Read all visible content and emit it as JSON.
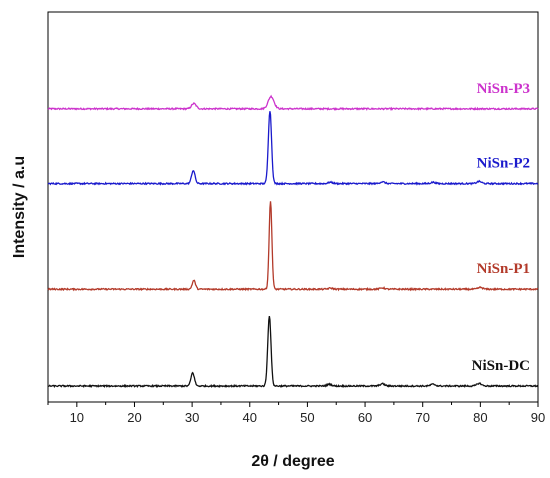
{
  "chart_data": {
    "type": "line",
    "title": "",
    "xlabel": "2θ / degree",
    "ylabel": "Intensity / a.u",
    "xlim": [
      5,
      90
    ],
    "x_ticks": [
      10,
      20,
      30,
      40,
      50,
      60,
      70,
      80,
      90
    ],
    "y_ticks_shown": false,
    "grid": false,
    "legend": "none",
    "peak_positions": [
      30.2,
      43.5,
      53.8,
      63.0,
      71.8,
      79.8
    ],
    "series": [
      {
        "name": "NiSn-P3",
        "color": "#cc33cc",
        "baseline": 3.15,
        "noise": 0.008,
        "peaks": [
          {
            "x": 30.3,
            "height": 0.06,
            "width": 0.4
          },
          {
            "x": 43.7,
            "height": 0.14,
            "width": 0.5
          }
        ]
      },
      {
        "name": "NiSn-P2",
        "color": "#1a1acc",
        "baseline": 2.3,
        "noise": 0.008,
        "peaks": [
          {
            "x": 30.2,
            "height": 0.15,
            "width": 0.3
          },
          {
            "x": 43.5,
            "height": 0.83,
            "width": 0.28
          },
          {
            "x": 54.0,
            "height": 0.015,
            "width": 0.4
          },
          {
            "x": 63.0,
            "height": 0.02,
            "width": 0.4
          },
          {
            "x": 71.8,
            "height": 0.015,
            "width": 0.4
          },
          {
            "x": 79.8,
            "height": 0.025,
            "width": 0.4
          }
        ]
      },
      {
        "name": "NiSn-P1",
        "color": "#b33a2a",
        "baseline": 1.1,
        "noise": 0.008,
        "peaks": [
          {
            "x": 30.3,
            "height": 0.1,
            "width": 0.28
          },
          {
            "x": 43.6,
            "height": 1.0,
            "width": 0.24
          },
          {
            "x": 54.0,
            "height": 0.012,
            "width": 0.4
          },
          {
            "x": 63.0,
            "height": 0.015,
            "width": 0.4
          },
          {
            "x": 80.0,
            "height": 0.02,
            "width": 0.4
          }
        ]
      },
      {
        "name": "NiSn-DC",
        "color": "#111111",
        "baseline": 0.0,
        "noise": 0.008,
        "peaks": [
          {
            "x": 30.1,
            "height": 0.15,
            "width": 0.3
          },
          {
            "x": 43.4,
            "height": 0.8,
            "width": 0.28
          },
          {
            "x": 53.8,
            "height": 0.02,
            "width": 0.4
          },
          {
            "x": 63.0,
            "height": 0.025,
            "width": 0.4
          },
          {
            "x": 71.8,
            "height": 0.02,
            "width": 0.4
          },
          {
            "x": 79.8,
            "height": 0.03,
            "width": 0.4
          }
        ]
      }
    ]
  }
}
